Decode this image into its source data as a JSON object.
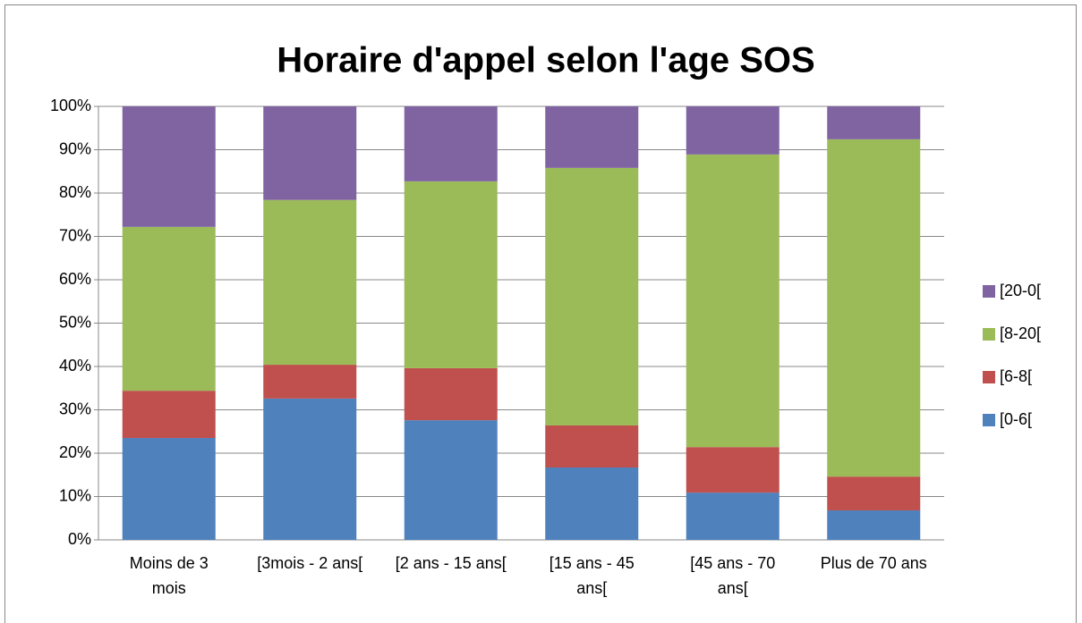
{
  "chart_data": {
    "type": "stacked-bar",
    "title": "Horaire d'appel selon l'age SOS",
    "categories": [
      "Moins de 3 mois",
      "[3mois - 2 ans[",
      "[2 ans - 15 ans[",
      "[15 ans - 45 ans[",
      "[45 ans - 70 ans[",
      "Plus de 70 ans"
    ],
    "series": [
      {
        "name": "[0-6[",
        "color": "#4f81bd",
        "values": [
          23.5,
          32.6,
          27.6,
          16.7,
          10.9,
          6.8
        ]
      },
      {
        "name": "[6-8[",
        "color": "#c0504d",
        "values": [
          10.9,
          7.8,
          12.0,
          9.7,
          10.5,
          7.8
        ]
      },
      {
        "name": "[8-20[",
        "color": "#9bbb59",
        "values": [
          37.8,
          38.0,
          43.1,
          59.4,
          67.5,
          77.8
        ]
      },
      {
        "name": "[20-0[",
        "color": "#8064a2",
        "values": [
          27.8,
          21.6,
          17.3,
          14.2,
          11.1,
          7.6
        ]
      }
    ],
    "ylim": [
      0,
      100
    ],
    "yticks": [
      {
        "value": 0,
        "label": "0%"
      },
      {
        "value": 10,
        "label": "10%"
      },
      {
        "value": 20,
        "label": "20%"
      },
      {
        "value": 30,
        "label": "30%"
      },
      {
        "value": 40,
        "label": "40%"
      },
      {
        "value": 50,
        "label": "50%"
      },
      {
        "value": 60,
        "label": "60%"
      },
      {
        "value": 70,
        "label": "70%"
      },
      {
        "value": 80,
        "label": "80%"
      },
      {
        "value": 90,
        "label": "90%"
      },
      {
        "value": 100,
        "label": "100%"
      }
    ],
    "grid": true,
    "legend": "right"
  }
}
